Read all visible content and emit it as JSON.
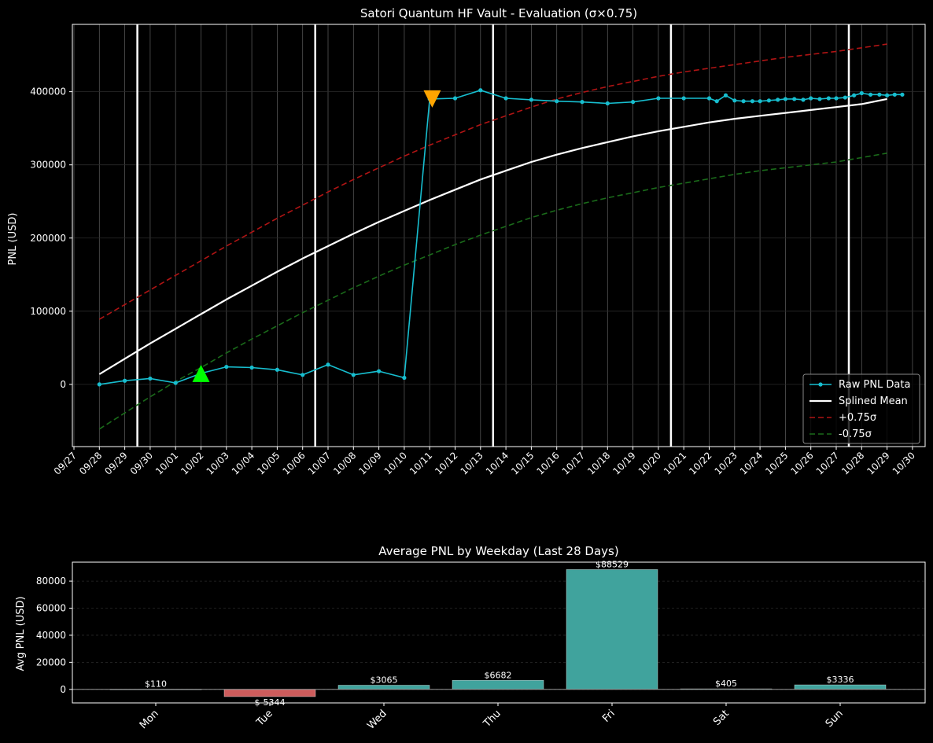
{
  "chart_data": [
    {
      "type": "line",
      "title": "Satori Quantum HF Vault - Evaluation (σ×0.75)",
      "xlabel": "",
      "ylabel": "PNL (USD)",
      "x_tick_labels": [
        "09/27",
        "09/28",
        "09/29",
        "09/30",
        "10/01",
        "10/02",
        "10/03",
        "10/04",
        "10/05",
        "10/06",
        "10/07",
        "10/08",
        "10/09",
        "10/10",
        "10/11",
        "10/12",
        "10/13",
        "10/14",
        "10/15",
        "10/16",
        "10/17",
        "10/18",
        "10/19",
        "10/20",
        "10/21",
        "10/22",
        "10/23",
        "10/24",
        "10/25",
        "10/26",
        "10/27",
        "10/28",
        "10/29",
        "10/30"
      ],
      "x_range": [
        "09/27",
        "10/30"
      ],
      "y_ticks": [
        0,
        100000,
        200000,
        300000,
        400000
      ],
      "y_tick_labels": [
        "0",
        "100000",
        "200000",
        "300000",
        "400000"
      ],
      "ylim": [
        -85000,
        492000
      ],
      "grid": true,
      "legend_position": "bottom-right",
      "week_boundaries": [
        "09/29",
        "10/06",
        "10/13",
        "10/20",
        "10/27"
      ],
      "series": [
        {
          "name": "Raw PNL Data",
          "color": "#17becf",
          "style": "line-with-dots",
          "x": [
            0,
            1,
            2,
            3,
            4,
            5,
            6,
            7,
            8,
            9,
            10,
            11,
            12,
            13,
            14,
            15,
            16,
            17,
            18,
            19,
            20,
            21,
            22,
            23,
            24,
            24.3,
            24.65,
            25,
            25.35,
            25.7,
            26,
            26.35,
            26.7,
            27,
            27.35,
            27.7,
            28,
            28.35,
            28.7,
            29,
            29.35,
            29.7,
            30,
            30.35,
            30.7,
            31,
            31.3,
            31.6
          ],
          "x_origin": "09/28",
          "values": [
            0,
            5000,
            8000,
            2000,
            15000,
            24000,
            23000,
            20000,
            13000,
            27000,
            13000,
            18000,
            9000,
            390000,
            391000,
            402000,
            391000,
            389000,
            387000,
            386000,
            384000,
            386000,
            391000,
            391000,
            391000,
            387000,
            395000,
            388000,
            387000,
            387000,
            387000,
            388000,
            389000,
            390000,
            390000,
            389000,
            391000,
            390000,
            391000,
            391000,
            392000,
            395000,
            398000,
            396000,
            396000,
            395000,
            396000,
            396000
          ]
        },
        {
          "name": "Splined Mean",
          "color": "#ffffff",
          "style": "solid",
          "x": [
            0,
            1,
            2,
            3,
            4,
            5,
            6,
            7,
            8,
            9,
            10,
            11,
            12,
            13,
            14,
            15,
            16,
            17,
            18,
            19,
            20,
            21,
            22,
            23,
            24,
            25,
            26,
            27,
            28,
            29,
            30,
            31
          ],
          "x_origin": "09/28",
          "values": [
            14000,
            35000,
            56000,
            76000,
            96000,
            116000,
            135000,
            154000,
            172000,
            189000,
            206000,
            222000,
            237000,
            252000,
            266000,
            280000,
            292000,
            304000,
            314000,
            323000,
            331000,
            339000,
            346000,
            352000,
            358000,
            363000,
            367000,
            371000,
            375000,
            379000,
            383000,
            390000
          ]
        },
        {
          "name": "+0.75σ",
          "color": "#b01414",
          "style": "dashed",
          "x": [
            0,
            1,
            2,
            3,
            4,
            5,
            6,
            7,
            8,
            9,
            10,
            11,
            12,
            13,
            14,
            15,
            16,
            17,
            18,
            19,
            20,
            21,
            22,
            23,
            24,
            25,
            26,
            27,
            28,
            29,
            30,
            31
          ],
          "x_origin": "09/28",
          "values": [
            89000,
            109000,
            129000,
            149000,
            169000,
            189000,
            208000,
            227000,
            245000,
            263000,
            280000,
            296000,
            312000,
            327000,
            341000,
            355000,
            367000,
            379000,
            390000,
            399000,
            407000,
            414000,
            421000,
            427000,
            432000,
            437000,
            442000,
            447000,
            451000,
            455000,
            460000,
            465000
          ]
        },
        {
          "name": "-0.75σ",
          "color": "#1a6b1a",
          "style": "dashed",
          "x": [
            0,
            1,
            2,
            3,
            4,
            5,
            6,
            7,
            8,
            9,
            10,
            11,
            12,
            13,
            14,
            15,
            16,
            17,
            18,
            19,
            20,
            21,
            22,
            23,
            24,
            25,
            26,
            27,
            28,
            29,
            30,
            31
          ],
          "x_origin": "09/28",
          "values": [
            -61000,
            -39000,
            -17000,
            4000,
            23000,
            43000,
            62000,
            80000,
            98000,
            115000,
            132000,
            148000,
            163000,
            177000,
            191000,
            204000,
            216000,
            228000,
            238000,
            247000,
            255000,
            262000,
            269000,
            275000,
            281000,
            287000,
            292000,
            296000,
            300000,
            304000,
            310000,
            316000
          ]
        }
      ],
      "markers": [
        {
          "type": "triangle-up",
          "color": "#00ff00",
          "x": 4,
          "value": 15000
        },
        {
          "type": "triangle-down",
          "color": "#ffa500",
          "x": 13.1,
          "value": 390000
        }
      ]
    },
    {
      "type": "bar",
      "title": "Average PNL by Weekday (Last 28 Days)",
      "xlabel": "",
      "ylabel": "Avg PNL (USD)",
      "categories": [
        "Mon",
        "Tue",
        "Wed",
        "Thu",
        "Fri",
        "Sat",
        "Sun"
      ],
      "values": [
        110,
        -5344,
        3065,
        6682,
        88529,
        405,
        3336
      ],
      "value_labels": [
        "$110",
        "$-5344",
        "$3065",
        "$6682",
        "$88529",
        "$405",
        "$3336"
      ],
      "ylim": [
        -10000,
        94000
      ],
      "y_ticks": [
        0,
        20000,
        40000,
        60000,
        80000
      ],
      "y_tick_labels": [
        "0",
        "20000",
        "40000",
        "60000",
        "80000"
      ],
      "positive_color": "#40a39d",
      "negative_color": "#cd5c5c",
      "grid": true
    }
  ]
}
